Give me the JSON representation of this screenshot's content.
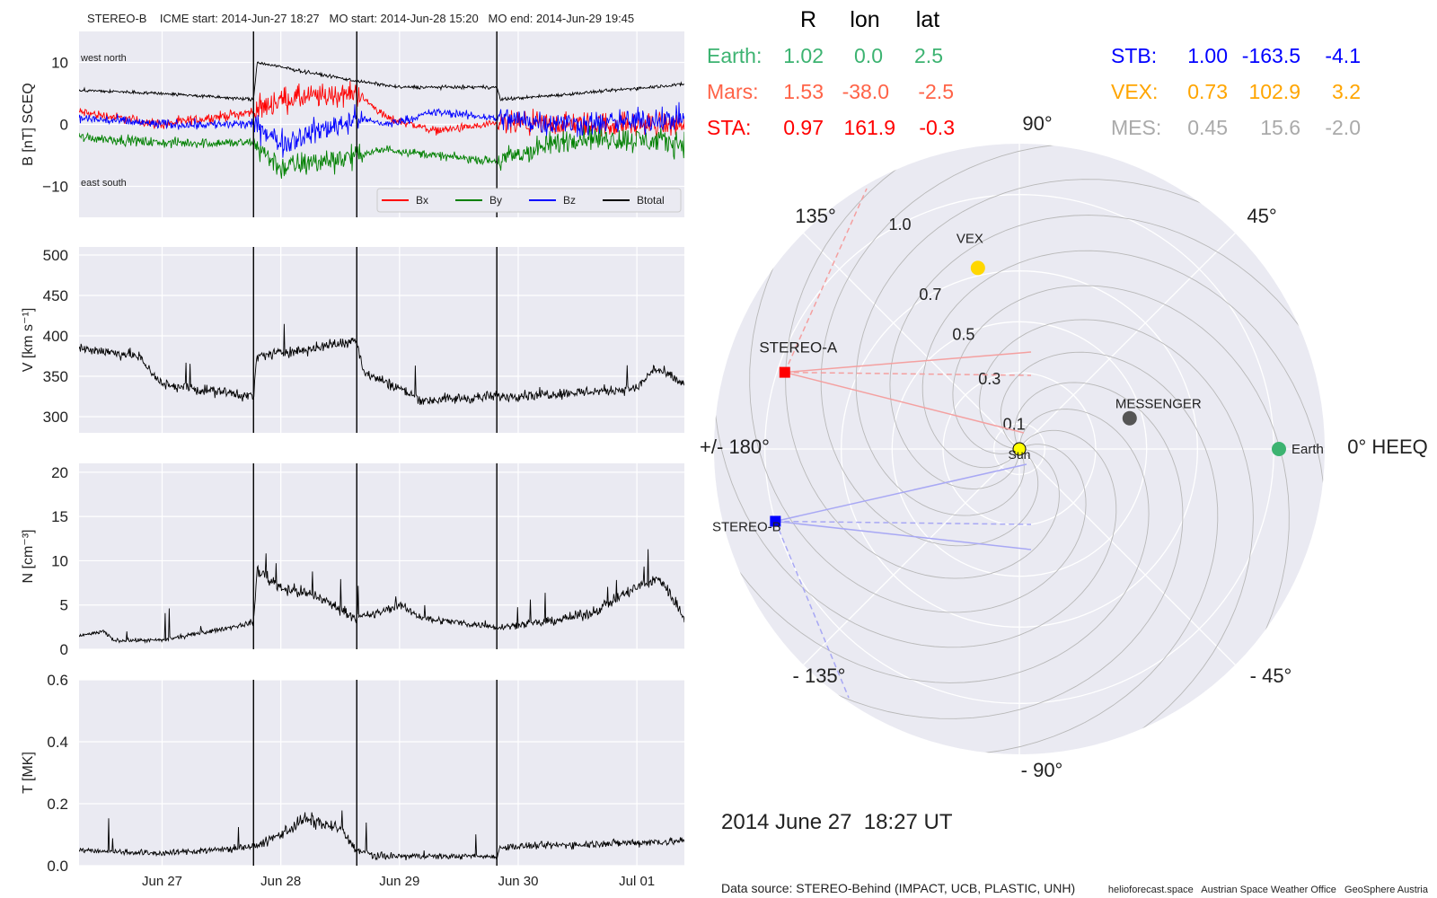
{
  "header": "STEREO-B    ICME start: 2014-Jun-27 18:27   MO start: 2014-Jun-28 15:20   MO end: 2014-Jun-29 19:45",
  "colors": {
    "bx": "#ff0000",
    "by": "#008000",
    "bz": "#0000ff",
    "btotal": "#000000",
    "earth": "#3cb371",
    "mars": "#ff6347",
    "sta": "#ff0000",
    "stb": "#0000ff",
    "vex": "#ffa500",
    "mes": "#aaaaaa",
    "panel_bg": "#eaeaf2"
  },
  "chart_data": [
    {
      "type": "line",
      "name": "magnetic-field",
      "ylabel": "B [nT] SCEQ",
      "ylim": [
        -15,
        15
      ],
      "yticks": [
        10,
        0,
        -10
      ],
      "labels_top": [
        "west",
        "north"
      ],
      "labels_bottom": [
        "east",
        "south"
      ],
      "legend": [
        "Bx",
        "By",
        "Bz",
        "Btotal"
      ],
      "legend_position": "lower-right"
    },
    {
      "type": "line",
      "name": "speed",
      "ylabel": "V [km s⁻¹]",
      "ylim": [
        280,
        510
      ],
      "yticks": [
        500,
        450,
        400,
        350,
        300
      ]
    },
    {
      "type": "line",
      "name": "density",
      "ylabel": "N [cm⁻³]",
      "ylim": [
        0,
        21
      ],
      "yticks": [
        20,
        15,
        10,
        5,
        0
      ]
    },
    {
      "type": "line",
      "name": "temperature",
      "ylabel": "T [MK]",
      "ylim": [
        0,
        0.6
      ],
      "yticks": [
        "0.6",
        "0.4",
        "0.2",
        "0.0"
      ]
    }
  ],
  "time_axis": {
    "start_day": 26.3,
    "end_day": 31.4,
    "tick_days": [
      27,
      28,
      29,
      30,
      31
    ],
    "tick_labels": [
      "Jun 27",
      "Jun 28",
      "Jun 29",
      "Jun 30",
      "Jul 01"
    ],
    "event_days": [
      27.77,
      28.64,
      29.82
    ]
  },
  "polar_plot": {
    "type": "polar",
    "angle_labels": [
      "90°",
      "45°",
      "0° HEEQ",
      "- 45°",
      "- 90°",
      "- 135°",
      "+/- 180°",
      "135°"
    ],
    "radial_labels": [
      "1.0",
      "0.7",
      "0.5",
      "0.3",
      "0.1"
    ],
    "rmax": 1.2,
    "bodies": [
      {
        "name": "Earth",
        "r": 1.02,
        "lon": 0.0
      },
      {
        "name": "MESSENGER",
        "r": 0.45,
        "lon": 15.6
      },
      {
        "name": "VEX",
        "r": 0.73,
        "lon": 102.9
      },
      {
        "name": "STEREO-A",
        "r": 0.97,
        "lon": 161.9
      },
      {
        "name": "STEREO-B",
        "r": 1.0,
        "lon": -163.5
      },
      {
        "name": "Sun",
        "r": 0.0,
        "lon": 0.0
      }
    ]
  },
  "table": {
    "columns": [
      "R",
      "lon",
      "lat"
    ],
    "left_rows": [
      {
        "name": "Earth:",
        "r": "1.02",
        "lon": "0.0",
        "lat": "2.5"
      },
      {
        "name": "Mars:",
        "r": "1.53",
        "lon": "-38.0",
        "lat": "-2.5"
      },
      {
        "name": "STA:",
        "r": "0.97",
        "lon": "161.9",
        "lat": "-0.3"
      }
    ],
    "right_rows": [
      {
        "name": "STB:",
        "r": "1.00",
        "lon": "-163.5",
        "lat": "-4.1"
      },
      {
        "name": "VEX:",
        "r": "0.73",
        "lon": "102.9",
        "lat": "3.2"
      },
      {
        "name": "MES:",
        "r": "0.45",
        "lon": "15.6",
        "lat": "-2.0"
      }
    ]
  },
  "date_label": "2014 June 27  18:27 UT",
  "footer": {
    "source": "Data source: STEREO-Behind (IMPACT, UCB, PLASTIC, UNH)",
    "credits": "helioforecast.space   Austrian Space Weather Office   GeoSphere Austria"
  }
}
